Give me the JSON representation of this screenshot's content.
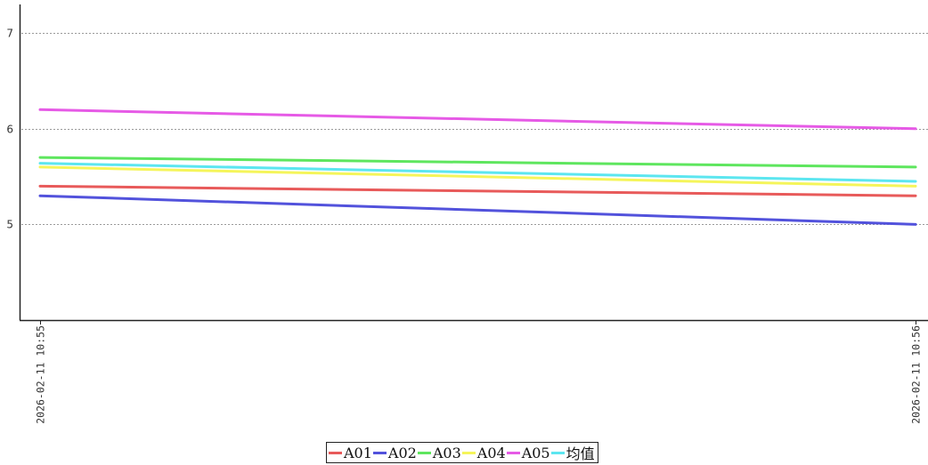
{
  "chart_data": {
    "type": "line",
    "title": "",
    "xlabel": "",
    "ylabel": "",
    "x": [
      "2026-02-11 10:55",
      "2026-02-11 10:56"
    ],
    "ylim": [
      4,
      7.3
    ],
    "yticks": [
      "5",
      "6",
      "7"
    ],
    "grid": "horizontal dashed",
    "legend_position": "bottom-center",
    "series": [
      {
        "name": "A01",
        "color": "#e85a5a",
        "values": [
          5.4,
          5.3
        ]
      },
      {
        "name": "A02",
        "color": "#5252dc",
        "values": [
          5.3,
          5.0
        ]
      },
      {
        "name": "A03",
        "color": "#5ee65e",
        "values": [
          5.7,
          5.6
        ]
      },
      {
        "name": "A04",
        "color": "#f5f55a",
        "values": [
          5.6,
          5.4
        ]
      },
      {
        "name": "A05",
        "color": "#e65ae6",
        "values": [
          6.2,
          6.0
        ]
      },
      {
        "name": "均值",
        "color": "#5ce6f0",
        "values": [
          5.64,
          5.45
        ]
      }
    ]
  }
}
